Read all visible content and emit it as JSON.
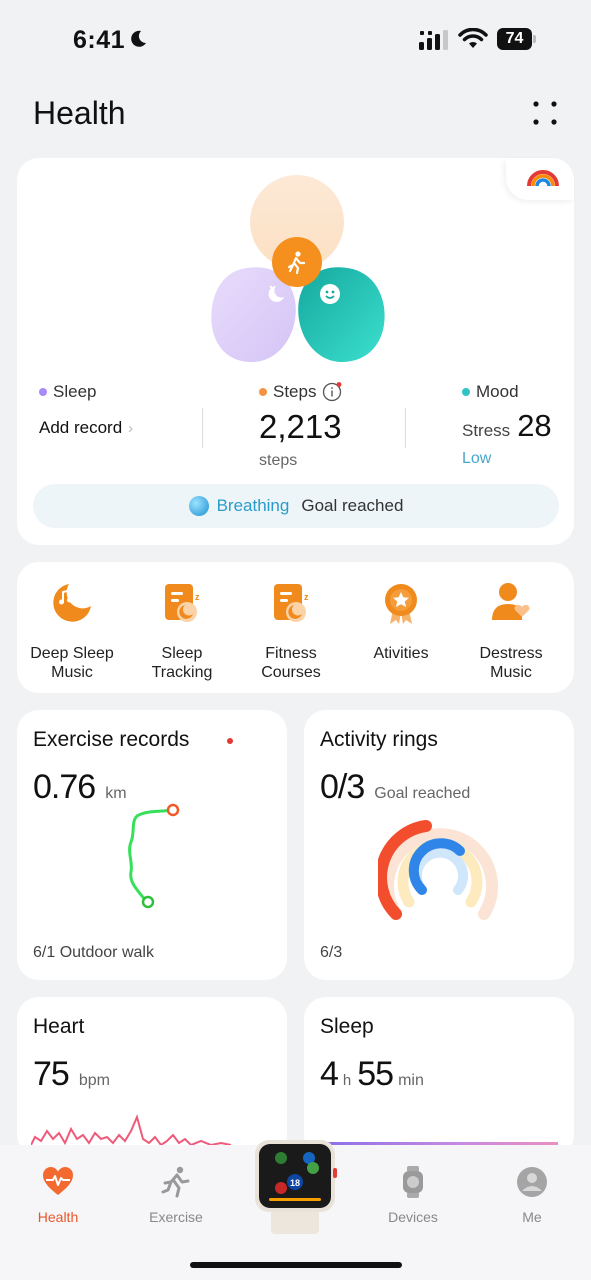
{
  "status_bar": {
    "time": "6:41",
    "battery": "74"
  },
  "page_title": "Health",
  "summary": {
    "sleep": {
      "label": "Sleep",
      "action": "Add record",
      "color": "#a78bfa"
    },
    "steps": {
      "label": "Steps",
      "value": "2,213",
      "unit": "steps",
      "color": "#f59342"
    },
    "mood": {
      "label": "Mood",
      "stress_label": "Stress",
      "stress_value": "28",
      "level": "Low",
      "color": "#2ec4c4"
    },
    "breathing": {
      "name": "Breathing",
      "status": "Goal reached"
    }
  },
  "shortcuts": [
    {
      "label": "Deep Sleep\nMusic",
      "icon": "music-moon-icon"
    },
    {
      "label": "Sleep\nTracking",
      "icon": "sleep-tracking-icon"
    },
    {
      "label": "Fitness\nCourses",
      "icon": "fitness-courses-icon"
    },
    {
      "label": "Ativities",
      "icon": "medal-icon"
    },
    {
      "label": "Destress\nMusic",
      "icon": "destress-icon"
    }
  ],
  "exercise_card": {
    "title": "Exercise records",
    "value": "0.76",
    "unit": "km",
    "footer": "6/1 Outdoor walk"
  },
  "rings_card": {
    "title": "Activity rings",
    "value": "0/3",
    "status": "Goal reached",
    "footer": "6/3"
  },
  "heart_card": {
    "title": "Heart",
    "value": "75",
    "unit": "bpm"
  },
  "sleep_card": {
    "title": "Sleep",
    "hours": "4",
    "hours_unit": "h",
    "minutes": "55",
    "minutes_unit": "min"
  },
  "tabbar": {
    "health": "Health",
    "exercise": "Exercise",
    "devices": "Devices",
    "me": "Me",
    "watch_date": "18"
  },
  "accent_color": "#e8572a"
}
